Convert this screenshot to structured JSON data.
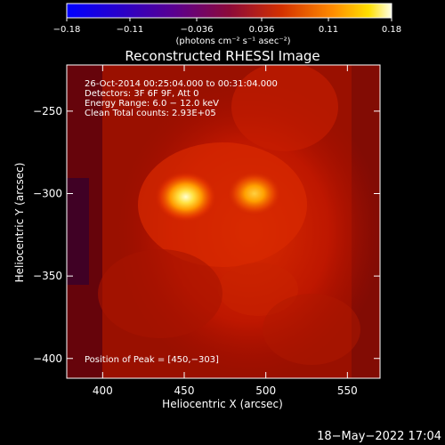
{
  "chart_data": {
    "type": "heatmap",
    "title": "Reconstructed RHESSI Image",
    "xlabel": "Heliocentric X (arcsec)",
    "ylabel": "Heliocentric Y (arcsec)",
    "xlim": [
      378,
      570
    ],
    "ylim": [
      -412,
      -222
    ],
    "xticks": [
      400,
      450,
      500,
      550
    ],
    "yticks": [
      -250,
      -300,
      -350,
      -400
    ],
    "colorbar": {
      "min": -0.18,
      "max": 0.18,
      "ticks": [
        -0.18,
        -0.11,
        -0.036,
        0.036,
        0.11,
        0.18
      ],
      "tick_labels": [
        "−0.18",
        "−0.11",
        "−0.036",
        "0.036",
        "0.11",
        "0.18"
      ],
      "unit_label": "(photons cm⁻² s⁻¹ asec⁻²)"
    },
    "annotations": [
      "26-Oct-2014 00:25:04.000 to 00:31:04.000",
      "Detectors: 3F 6F 9F, Att 0",
      "Energy Range: 6.0 − 12.0 keV",
      "Clean    Total counts: 2.93E+05"
    ],
    "peak_label": "Position of Peak = [450,−303]",
    "sources": [
      {
        "x": 451,
        "y": -302,
        "peak": 0.18,
        "sigma": 8
      },
      {
        "x": 493,
        "y": -300,
        "peak": 0.13,
        "sigma": 7
      }
    ],
    "timestamp": "18−May−2022 17:04"
  }
}
